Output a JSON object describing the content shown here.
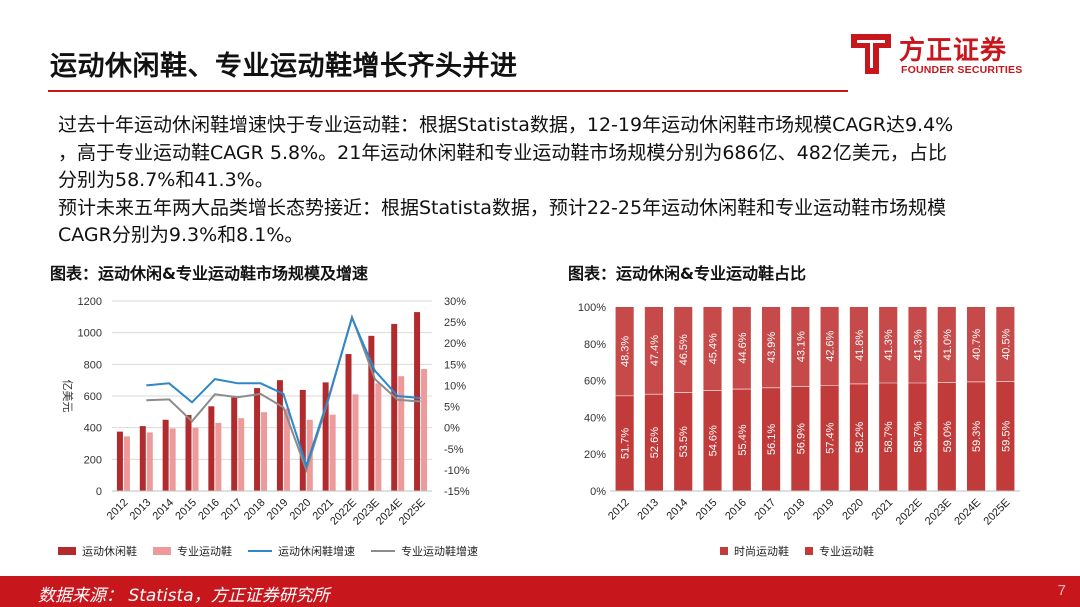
{
  "header": {
    "title": "运动休闲鞋、专业运动鞋增长齐头并进",
    "logo": {
      "cn": "方正证券",
      "en": "FOUNDER SECURITIES"
    }
  },
  "body": {
    "line1": "过去十年运动休闲鞋增速快于专业运动鞋：根据Statista数据，12-19年运动休闲鞋市场规模CAGR达9.4%",
    "line2": "，高于专业运动鞋CAGR 5.8%。21年运动休闲鞋和专业运动鞋市场规模分别为686亿、482亿美元，占比",
    "line3": "分别为58.7%和41.3%。",
    "line4": "预计未来五年两大品类增长态势接近：根据Statista数据，预计22-25年运动休闲鞋和专业运动鞋市场规模",
    "line5": "CAGR分别为9.3%和8.1%。"
  },
  "colors": {
    "brand_red": "#c8161d",
    "casual_bar": "#b02a2e",
    "pro_bar": "#ec9a9a",
    "casual_growth_line": "#2e87c9",
    "pro_growth_line": "#8c8c8c",
    "share_casual": "#c23b3b",
    "share_pro": "#c23b3b"
  },
  "footer": {
    "source": "数据来源： Statista，方正证券研究所",
    "page_number": "7"
  },
  "chart_data": [
    {
      "type": "bar",
      "title": "图表：运动休闲&专业运动鞋市场规模及增速",
      "ylabel": "亿美元",
      "ylim": [
        0,
        1200
      ],
      "y_ticks": [
        "0",
        "200",
        "400",
        "600",
        "800",
        "1000",
        "1200"
      ],
      "y2lim": [
        -15,
        30
      ],
      "y2_ticks": [
        "-15%",
        "-10%",
        "-5%",
        "0%",
        "5%",
        "10%",
        "15%",
        "20%",
        "25%",
        "30%"
      ],
      "grid": true,
      "legend": "bottom",
      "categories": [
        "2012",
        "2013",
        "2014",
        "2015",
        "2016",
        "2017",
        "2018",
        "2019",
        "2020",
        "2021",
        "2022E",
        "2023E",
        "2024E",
        "2025E"
      ],
      "series": [
        {
          "name": "运动休闲鞋",
          "kind": "bar",
          "axis": "left",
          "values": [
            375,
            410,
            450,
            480,
            535,
            590,
            650,
            700,
            638,
            686,
            865,
            980,
            1055,
            1130
          ]
        },
        {
          "name": "专业运动鞋",
          "kind": "bar",
          "axis": "left",
          "values": [
            345,
            370,
            395,
            400,
            430,
            460,
            498,
            520,
            450,
            482,
            610,
            680,
            725,
            770
          ]
        },
        {
          "name": "运动休闲鞋增速",
          "kind": "line",
          "axis": "right",
          "values": [
            null,
            10.0,
            10.5,
            6.0,
            11.5,
            10.5,
            10.5,
            8.0,
            -9.0,
            7.5,
            26.0,
            13.5,
            7.5,
            7.0
          ]
        },
        {
          "name": "专业运动鞋增速",
          "kind": "line",
          "axis": "right",
          "values": [
            null,
            6.5,
            6.7,
            1.5,
            7.9,
            7.2,
            8.0,
            4.8,
            -10.0,
            7.2,
            26.2,
            11.5,
            6.6,
            6.2
          ]
        }
      ]
    },
    {
      "type": "bar",
      "stacked": true,
      "title": "图表：运动休闲&专业运动鞋占比",
      "ylim": [
        0,
        100
      ],
      "y_ticks": [
        "0%",
        "20%",
        "40%",
        "60%",
        "80%",
        "100%"
      ],
      "grid": false,
      "legend": "bottom",
      "categories": [
        "2012",
        "2013",
        "2014",
        "2015",
        "2016",
        "2017",
        "2018",
        "2019",
        "2020",
        "2021",
        "2022E",
        "2023E",
        "2024E",
        "2025E"
      ],
      "series": [
        {
          "name": "时尚运动鞋",
          "values": [
            51.7,
            52.6,
            53.5,
            54.6,
            55.4,
            56.1,
            56.9,
            57.4,
            58.2,
            58.7,
            58.7,
            59.0,
            59.3,
            59.5
          ],
          "labels": [
            "51.7%",
            "52.6%",
            "53.5%",
            "54.6%",
            "55.4%",
            "56.1%",
            "56.9%",
            "57.4%",
            "58.2%",
            "58.7%",
            "58.7%",
            "59.0%",
            "59.3%",
            "59.5%"
          ]
        },
        {
          "name": "专业运动鞋",
          "values": [
            48.3,
            47.4,
            46.5,
            45.4,
            44.6,
            43.9,
            43.1,
            42.6,
            41.8,
            41.3,
            41.3,
            41.0,
            40.7,
            40.5
          ],
          "labels": [
            "48.3%",
            "47.4%",
            "46.5%",
            "45.4%",
            "44.6%",
            "43.9%",
            "43.1%",
            "42.6%",
            "41.8%",
            "41.3%",
            "41.3%",
            "41.0%",
            "40.7%",
            "40.5%"
          ]
        }
      ]
    }
  ]
}
